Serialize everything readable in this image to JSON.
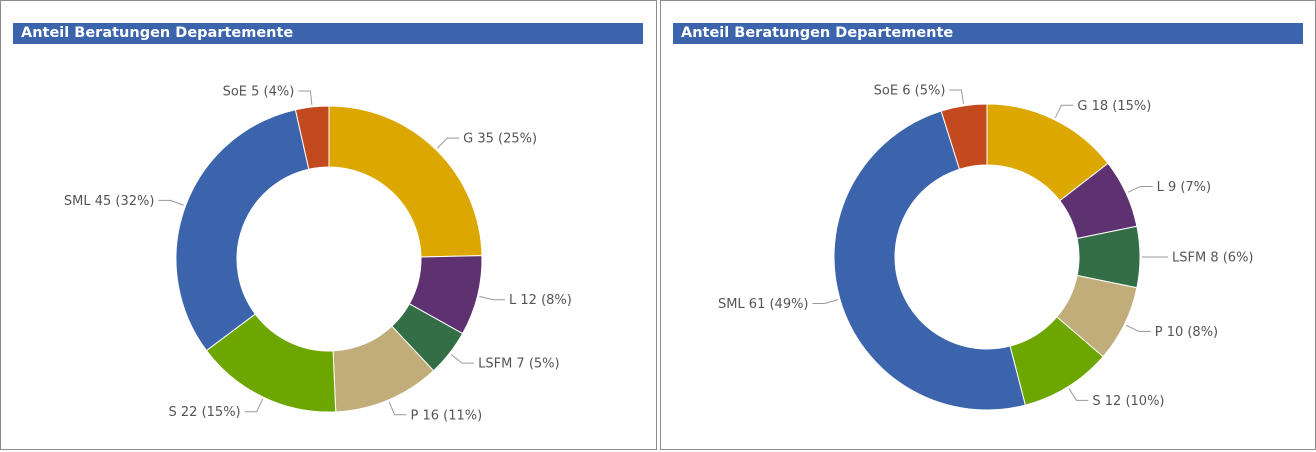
{
  "chart_data": [
    {
      "type": "pie",
      "donut": true,
      "title": "Anteil Beratungen Departemente",
      "slices": [
        {
          "name": "G",
          "value": 35,
          "label": "G 35 (25%)",
          "color": "#dca700"
        },
        {
          "name": "L",
          "value": 12,
          "label": "L 12 (8%)",
          "color": "#5e3170"
        },
        {
          "name": "LSFM",
          "value": 7,
          "label": "LSFM 7 (5%)",
          "color": "#336e46"
        },
        {
          "name": "P",
          "value": 16,
          "label": "P 16 (11%)",
          "color": "#c1ad7a"
        },
        {
          "name": "S",
          "value": 22,
          "label": "S 22 (15%)",
          "color": "#6ea600"
        },
        {
          "name": "SML",
          "value": 45,
          "label": "SML 45 (32%)",
          "color": "#3b64ad"
        },
        {
          "name": "SoE",
          "value": 5,
          "label": "SoE 5 (4%)",
          "color": "#c24a1e"
        }
      ]
    },
    {
      "type": "pie",
      "donut": true,
      "title": "Anteil Beratungen Departemente",
      "slices": [
        {
          "name": "G",
          "value": 18,
          "label": "G 18 (15%)",
          "color": "#dca700"
        },
        {
          "name": "L",
          "value": 9,
          "label": "L 9 (7%)",
          "color": "#5e3170"
        },
        {
          "name": "LSFM",
          "value": 8,
          "label": "LSFM 8 (6%)",
          "color": "#336e46"
        },
        {
          "name": "P",
          "value": 10,
          "label": "P 10 (8%)",
          "color": "#c1ad7a"
        },
        {
          "name": "S",
          "value": 12,
          "label": "S 12 (10%)",
          "color": "#6ea600"
        },
        {
          "name": "SML",
          "value": 61,
          "label": "SML 61 (49%)",
          "color": "#3b64ad"
        },
        {
          "name": "SoE",
          "value": 6,
          "label": "SoE 6 (5%)",
          "color": "#c24a1e"
        }
      ]
    }
  ]
}
